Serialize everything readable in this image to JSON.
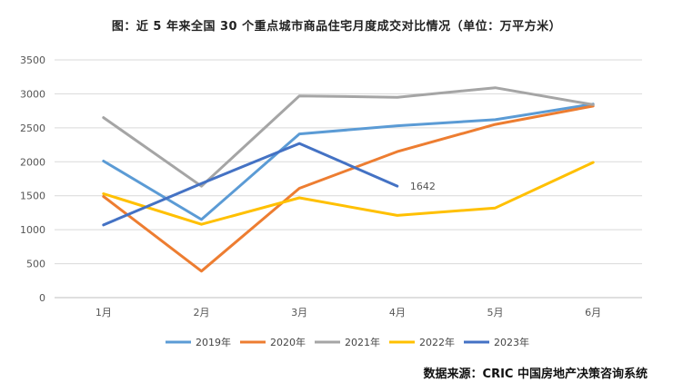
{
  "chart_data": {
    "type": "line",
    "title": "图：近 5 年来全国 30 个重点城市商品住宅月度成交对比情况（单位：万平方米）",
    "source": "数据来源：CRIC 中国房地产决策咨询系统",
    "categories": [
      "1月",
      "2月",
      "3月",
      "4月",
      "5月",
      "6月"
    ],
    "y_ticks": [
      "0",
      "500",
      "1000",
      "1500",
      "2000",
      "2500",
      "3000",
      "3500"
    ],
    "ylim": [
      0,
      3500
    ],
    "grid": "horizontal",
    "legend_position": "bottom",
    "series": [
      {
        "name": "2019年",
        "color": "#5b9bd5",
        "values": [
          2010,
          1150,
          2410,
          2530,
          2620,
          2850
        ]
      },
      {
        "name": "2020年",
        "color": "#ed7d31",
        "values": [
          1490,
          390,
          1610,
          2150,
          2550,
          2820
        ]
      },
      {
        "name": "2021年",
        "color": "#a5a5a5",
        "values": [
          2650,
          1640,
          2970,
          2950,
          3090,
          2840
        ]
      },
      {
        "name": "2022年",
        "color": "#ffc000",
        "values": [
          1530,
          1080,
          1470,
          1210,
          1320,
          1990
        ]
      },
      {
        "name": "2023年",
        "color": "#4472c4",
        "values": [
          1070,
          1680,
          2270,
          1642,
          null,
          null
        ]
      }
    ],
    "annotations": [
      {
        "series": "2023年",
        "index": 3,
        "label": "1642"
      }
    ]
  }
}
